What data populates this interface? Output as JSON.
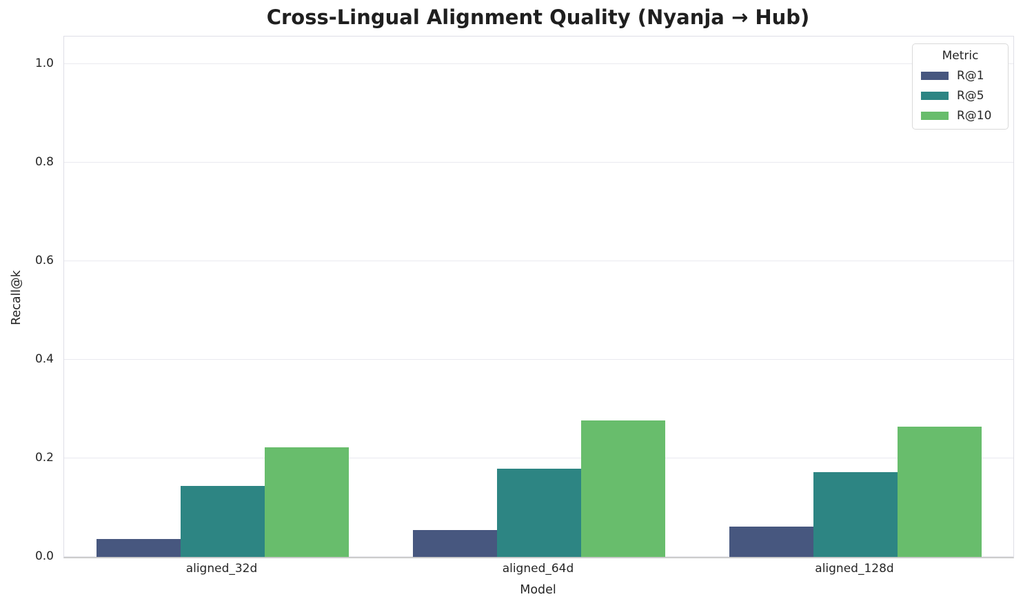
{
  "title": "Cross-Lingual Alignment Quality (Nyanja → Hub)",
  "chart_data": {
    "type": "bar",
    "categories": [
      "aligned_32d",
      "aligned_64d",
      "aligned_128d"
    ],
    "series": [
      {
        "name": "R@1",
        "color": "#47577f",
        "values": [
          0.036,
          0.054,
          0.061
        ]
      },
      {
        "name": "R@5",
        "color": "#2d8583",
        "values": [
          0.144,
          0.179,
          0.172
        ]
      },
      {
        "name": "R@10",
        "color": "#68bd6c",
        "values": [
          0.223,
          0.277,
          0.264
        ]
      }
    ],
    "xlabel": "Model",
    "ylabel": "Recall@k",
    "ylim": [
      0,
      1.056
    ],
    "yticks": [
      0.0,
      0.2,
      0.4,
      0.6,
      0.8,
      1.0
    ],
    "ytick_labels": [
      "0.0",
      "0.2",
      "0.4",
      "0.6",
      "0.8",
      "1.0"
    ],
    "legend_title": "Metric",
    "legend_position": "upper right",
    "grid": true,
    "grid_color": "#e9e9ef",
    "background_color": "#ffffff"
  }
}
